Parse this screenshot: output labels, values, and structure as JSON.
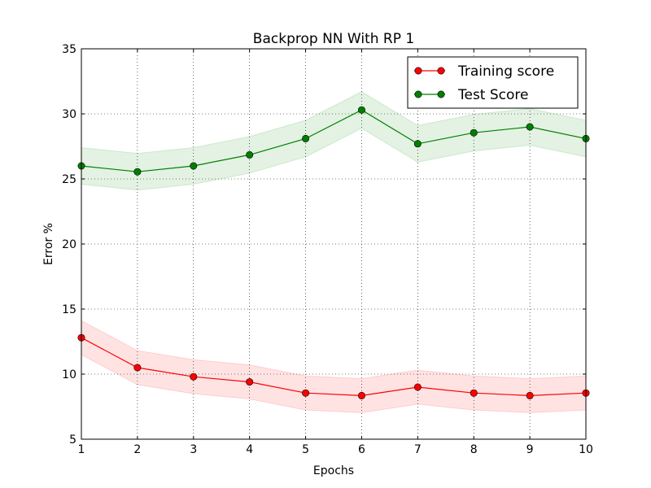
{
  "chart_data": {
    "type": "line",
    "title": "Backprop NN With RP 1",
    "xlabel": "Epochs",
    "ylabel": "Error %",
    "xlim": [
      1,
      10
    ],
    "ylim": [
      5,
      35
    ],
    "xticks": [
      1,
      2,
      3,
      4,
      5,
      6,
      7,
      8,
      9,
      10
    ],
    "yticks": [
      5,
      10,
      15,
      20,
      25,
      30,
      35
    ],
    "grid": true,
    "legend_position": "top-right",
    "x": [
      1,
      2,
      3,
      4,
      5,
      6,
      7,
      8,
      9,
      10
    ],
    "series": [
      {
        "name": "Training score",
        "color": "#ff0000",
        "band_color": "#ffcccc",
        "values": [
          12.8,
          10.5,
          9.8,
          9.4,
          8.55,
          8.35,
          9.0,
          8.55,
          8.35,
          8.55
        ],
        "lower": [
          11.5,
          9.2,
          8.5,
          8.1,
          7.25,
          7.05,
          7.7,
          7.25,
          7.05,
          7.25
        ],
        "upper": [
          14.1,
          11.8,
          11.1,
          10.7,
          9.85,
          9.65,
          10.3,
          9.85,
          9.65,
          9.85
        ]
      },
      {
        "name": "Test Score",
        "color": "#007f00",
        "band_color": "#cce8cc",
        "values": [
          26.0,
          25.55,
          26.0,
          26.85,
          28.1,
          30.3,
          27.7,
          28.55,
          29.0,
          28.1
        ],
        "lower": [
          24.6,
          24.15,
          24.6,
          25.45,
          26.7,
          28.9,
          26.3,
          27.15,
          27.6,
          26.7
        ],
        "upper": [
          27.4,
          26.95,
          27.4,
          28.25,
          29.5,
          31.7,
          29.1,
          29.95,
          30.4,
          29.5
        ]
      }
    ]
  }
}
